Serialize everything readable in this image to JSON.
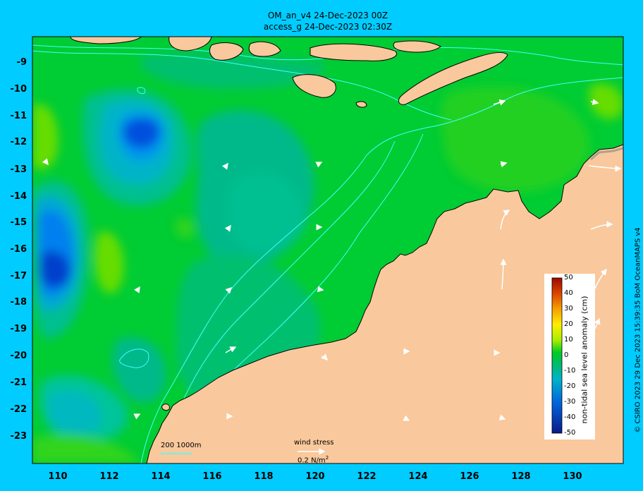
{
  "title": {
    "line1": "OM_an_v4  24-Dec-2023 00Z",
    "line2": "access_g 24-Dec-2023 02:30Z"
  },
  "map": {
    "lat_ticks": [
      "-9",
      "-10",
      "-11",
      "-12",
      "-13",
      "-14",
      "-15",
      "-16",
      "-17",
      "-18",
      "-19",
      "-20",
      "-21",
      "-22",
      "-23"
    ],
    "lon_ticks": [
      "110",
      "112",
      "114",
      "116",
      "118",
      "120",
      "122",
      "124",
      "126",
      "128",
      "130"
    ],
    "colors": {
      "land": "#f9c89c",
      "frame_bg": "#00ccff",
      "sea_green": "#00cc33",
      "sea_teal": "#00b98a",
      "sea_blue": "#0080ff",
      "contour": "#40ffff"
    }
  },
  "colorbar": {
    "label": "non-tidal sea level anomaly (cm)",
    "ticks": [
      "50",
      "40",
      "30",
      "20",
      "10",
      "0",
      "-10",
      "-20",
      "-30",
      "-40",
      "-50"
    ],
    "range": [
      -50,
      50
    ]
  },
  "legend": {
    "depth_contours": "200  1000m",
    "wind_label": "wind stress",
    "wind_scale": "0.2 N/m",
    "wind_scale_exp": "2"
  },
  "credit": "© CSIRO 2023  29 Dec 2023 15:39:35 BoM OceanMAPS v4"
}
